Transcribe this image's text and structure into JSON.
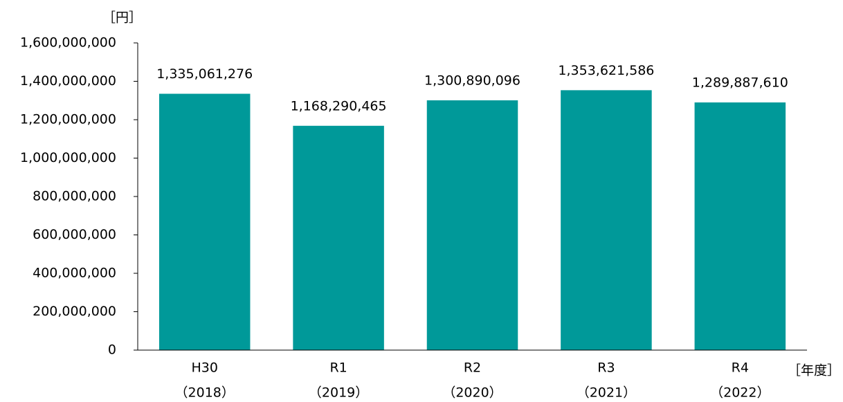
{
  "chart_data": {
    "type": "bar",
    "y_label": "［円］",
    "x_label": "［年度］",
    "categories": [
      [
        "H30",
        "（2018）"
      ],
      [
        "R1",
        "（2019）"
      ],
      [
        "R2",
        "（2020）"
      ],
      [
        "R3",
        "（2021）"
      ],
      [
        "R4",
        "（2022）"
      ]
    ],
    "values": [
      1335061276,
      1168290465,
      1300890096,
      1353621586,
      1289887610
    ],
    "value_labels": [
      "1,335,061,276",
      "1,168,290,465",
      "1,300,890,096",
      "1,353,621,586",
      "1,289,887,610"
    ],
    "color": "#009999",
    "ylim": [
      0,
      1600000000
    ],
    "yticks": [
      0,
      {
        "value": 200000000,
        "label": "200,000,000"
      },
      {
        "value": 400000000,
        "label": "400,000,000"
      },
      {
        "value": 600000000,
        "label": "600,000,000"
      },
      {
        "value": 800000000,
        "label": "800,000,000"
      },
      {
        "value": 1000000000,
        "label": "1,000,000,000"
      },
      {
        "value": 1200000000,
        "label": "1,200,000,000"
      },
      {
        "value": 1400000000,
        "label": "1,400,000,000"
      },
      {
        "value": 1600000000,
        "label": "1,600,000,000"
      }
    ],
    "grid": false
  }
}
